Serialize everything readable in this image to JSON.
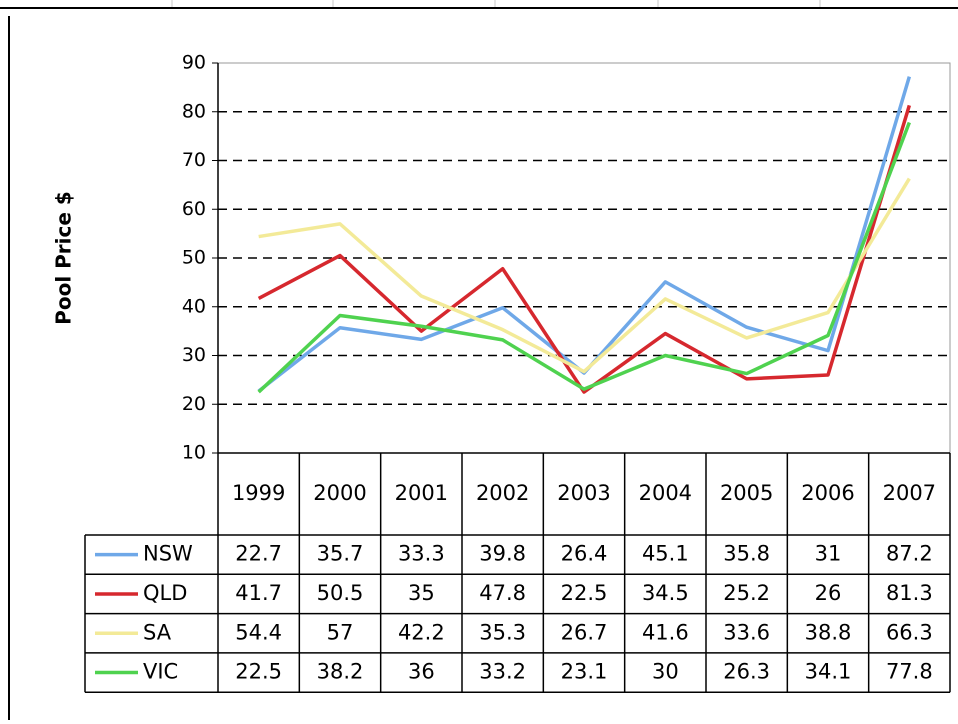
{
  "chart_data": {
    "type": "line",
    "y_label": "Pool Price $",
    "categories": [
      "1999",
      "2000",
      "2001",
      "2002",
      "2003",
      "2004",
      "2005",
      "2006",
      "2007"
    ],
    "series": [
      {
        "name": "NSW",
        "color": "#6fa8e8",
        "values": [
          22.7,
          35.7,
          33.3,
          39.8,
          26.4,
          45.1,
          35.8,
          31,
          87.2
        ]
      },
      {
        "name": "QLD",
        "color": "#d6282e",
        "values": [
          41.7,
          50.5,
          35,
          47.8,
          22.5,
          34.5,
          25.2,
          26,
          81.3
        ]
      },
      {
        "name": "SA",
        "color": "#f3ea98",
        "values": [
          54.4,
          57,
          42.2,
          35.3,
          26.7,
          41.6,
          33.6,
          38.8,
          66.3
        ]
      },
      {
        "name": "VIC",
        "color": "#4fd24f",
        "values": [
          22.5,
          38.2,
          36,
          33.2,
          23.1,
          30,
          26.3,
          34.1,
          77.8
        ]
      }
    ],
    "ylim": [
      10,
      90
    ],
    "yticks": [
      10,
      20,
      30,
      40,
      50,
      60,
      70,
      80,
      90
    ],
    "grid": true
  }
}
